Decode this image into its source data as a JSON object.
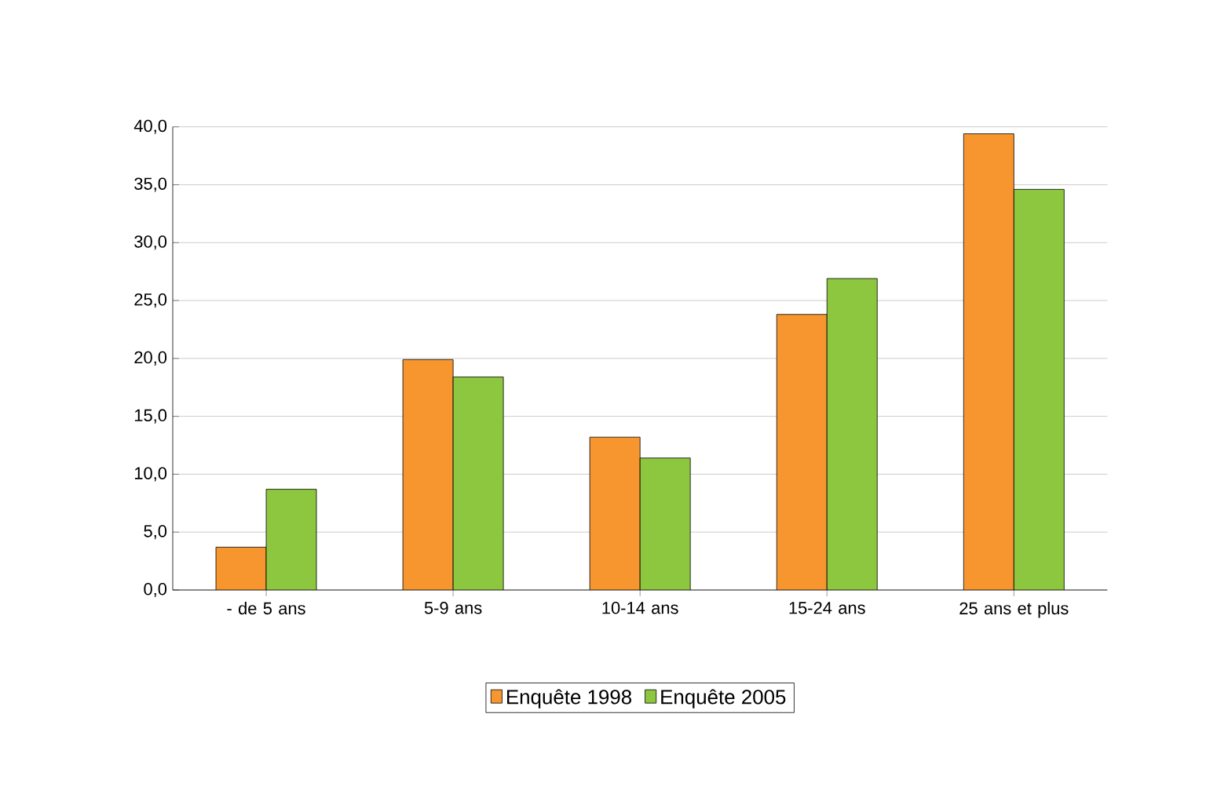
{
  "chart_data": {
    "type": "bar",
    "categories": [
      "- de 5 ans",
      "5-9 ans",
      "10-14 ans",
      "15-24 ans",
      "25 ans et plus"
    ],
    "series": [
      {
        "name": "Enquête 1998",
        "color": "#f7962f",
        "values": [
          3.7,
          19.9,
          13.2,
          23.8,
          39.4
        ]
      },
      {
        "name": "Enquête 2005",
        "color": "#8dc63f",
        "values": [
          8.7,
          18.4,
          11.4,
          26.9,
          34.6
        ]
      }
    ],
    "ylim": [
      0,
      40
    ],
    "yticks": [
      {
        "value": 0,
        "label": "0,0"
      },
      {
        "value": 5,
        "label": "5,0"
      },
      {
        "value": 10,
        "label": "10,0"
      },
      {
        "value": 15,
        "label": "15,0"
      },
      {
        "value": 20,
        "label": "20,0"
      },
      {
        "value": 25,
        "label": "25,0"
      },
      {
        "value": 30,
        "label": "30,0"
      },
      {
        "value": 35,
        "label": "35,0"
      },
      {
        "value": 40,
        "label": "40,0"
      }
    ],
    "grid": "y",
    "legend": "bottom"
  }
}
